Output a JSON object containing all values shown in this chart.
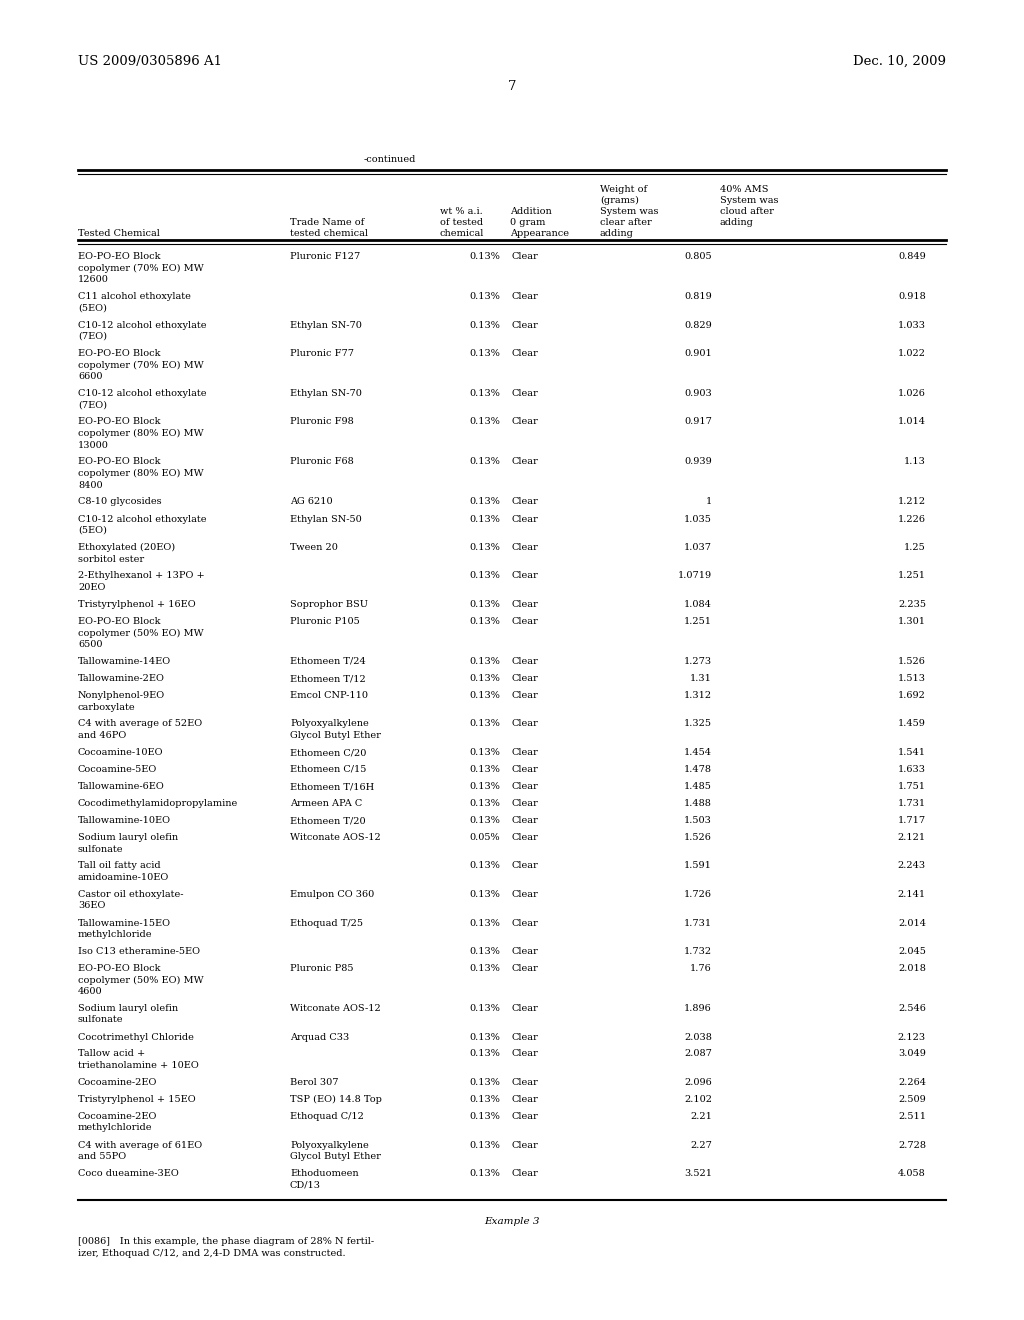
{
  "header_left": "US 2009/0305896 A1",
  "header_right": "Dec. 10, 2009",
  "page_number": "7",
  "continued_label": "-continued",
  "col_headers_line1": [
    "",
    "",
    "Weight of",
    "40% AMS"
  ],
  "col_headers_line2": [
    "",
    "",
    "(grams)",
    "System was"
  ],
  "col_headers_line3": [
    "",
    "wt % a.i.",
    "System was",
    "cloud after"
  ],
  "col_headers_line4": [
    "Trade Name of",
    "of tested  0 gram",
    "clear after",
    "adding"
  ],
  "col_headers_line5": [
    "tested chemical",
    "chemical  Appearance",
    "adding",
    ""
  ],
  "col_header_col0": "Tested Chemical",
  "rows": [
    [
      "EO-PO-EO Block\ncopolymer (70% EO) MW\n12600",
      "Pluronic F127",
      "0.13%",
      "Clear",
      "0.805",
      "0.849"
    ],
    [
      "C11 alcohol ethoxylate\n(5EO)",
      "",
      "0.13%",
      "Clear",
      "0.819",
      "0.918"
    ],
    [
      "C10-12 alcohol ethoxylate\n(7EO)",
      "Ethylan SN-70",
      "0.13%",
      "Clear",
      "0.829",
      "1.033"
    ],
    [
      "EO-PO-EO Block\ncopolymer (70% EO) MW\n6600",
      "Pluronic F77",
      "0.13%",
      "Clear",
      "0.901",
      "1.022"
    ],
    [
      "C10-12 alcohol ethoxylate\n(7EO)",
      "Ethylan SN-70",
      "0.13%",
      "Clear",
      "0.903",
      "1.026"
    ],
    [
      "EO-PO-EO Block\ncopolymer (80% EO) MW\n13000",
      "Pluronic F98",
      "0.13%",
      "Clear",
      "0.917",
      "1.014"
    ],
    [
      "EO-PO-EO Block\ncopolymer (80% EO) MW\n8400",
      "Pluronic F68",
      "0.13%",
      "Clear",
      "0.939",
      "1.13"
    ],
    [
      "C8-10 glycosides",
      "AG 6210",
      "0.13%",
      "Clear",
      "1",
      "1.212"
    ],
    [
      "C10-12 alcohol ethoxylate\n(5EO)",
      "Ethylan SN-50",
      "0.13%",
      "Clear",
      "1.035",
      "1.226"
    ],
    [
      "Ethoxylated (20EO)\nsorbitol ester",
      "Tween 20",
      "0.13%",
      "Clear",
      "1.037",
      "1.25"
    ],
    [
      "2-Ethylhexanol + 13PO +\n20EO",
      "",
      "0.13%",
      "Clear",
      "1.0719",
      "1.251"
    ],
    [
      "Tristyrylphenol + 16EO",
      "Soprophor BSU",
      "0.13%",
      "Clear",
      "1.084",
      "2.235"
    ],
    [
      "EO-PO-EO Block\ncopolymer (50% EO) MW\n6500",
      "Pluronic P105",
      "0.13%",
      "Clear",
      "1.251",
      "1.301"
    ],
    [
      "Tallowamine-14EO",
      "Ethomeen T/24",
      "0.13%",
      "Clear",
      "1.273",
      "1.526"
    ],
    [
      "Tallowamine-2EO",
      "Ethomeen T/12",
      "0.13%",
      "Clear",
      "1.31",
      "1.513"
    ],
    [
      "Nonylphenol-9EO\ncarboxylate",
      "Emcol CNP-110",
      "0.13%",
      "Clear",
      "1.312",
      "1.692"
    ],
    [
      "C4 with average of 52EO\nand 46PO",
      "Polyoxyalkylene\nGlycol Butyl Ether",
      "0.13%",
      "Clear",
      "1.325",
      "1.459"
    ],
    [
      "Cocoamine-10EO",
      "Ethomeen C/20",
      "0.13%",
      "Clear",
      "1.454",
      "1.541"
    ],
    [
      "Cocoamine-5EO",
      "Ethomeen C/15",
      "0.13%",
      "Clear",
      "1.478",
      "1.633"
    ],
    [
      "Tallowamine-6EO",
      "Ethomeen T/16H",
      "0.13%",
      "Clear",
      "1.485",
      "1.751"
    ],
    [
      "Cocodimethylamidopropylamine",
      "Armeen APA C",
      "0.13%",
      "Clear",
      "1.488",
      "1.731"
    ],
    [
      "Tallowamine-10EO",
      "Ethomeen T/20",
      "0.13%",
      "Clear",
      "1.503",
      "1.717"
    ],
    [
      "Sodium lauryl olefin\nsulfonate",
      "Witconate AOS-12",
      "0.05%",
      "Clear",
      "1.526",
      "2.121"
    ],
    [
      "Tall oil fatty acid\namidoamine-10EO",
      "",
      "0.13%",
      "Clear",
      "1.591",
      "2.243"
    ],
    [
      "Castor oil ethoxylate-\n36EO",
      "Emulpon CO 360",
      "0.13%",
      "Clear",
      "1.726",
      "2.141"
    ],
    [
      "Tallowamine-15EO\nmethylchloride",
      "Ethoquad T/25",
      "0.13%",
      "Clear",
      "1.731",
      "2.014"
    ],
    [
      "Iso C13 etheramine-5EO",
      "",
      "0.13%",
      "Clear",
      "1.732",
      "2.045"
    ],
    [
      "EO-PO-EO Block\ncopolymer (50% EO) MW\n4600",
      "Pluronic P85",
      "0.13%",
      "Clear",
      "1.76",
      "2.018"
    ],
    [
      "Sodium lauryl olefin\nsulfonate",
      "Witconate AOS-12",
      "0.13%",
      "Clear",
      "1.896",
      "2.546"
    ],
    [
      "Cocotrimethyl Chloride",
      "Arquad C33",
      "0.13%",
      "Clear",
      "2.038",
      "2.123"
    ],
    [
      "Tallow acid +\ntriethanolamine + 10EO",
      "",
      "0.13%",
      "Clear",
      "2.087",
      "3.049"
    ],
    [
      "Cocoamine-2EO",
      "Berol 307",
      "0.13%",
      "Clear",
      "2.096",
      "2.264"
    ],
    [
      "Tristyrylphenol + 15EO",
      "TSP (EO) 14.8 Top",
      "0.13%",
      "Clear",
      "2.102",
      "2.509"
    ],
    [
      "Cocoamine-2EO\nmethylchloride",
      "Ethoquad C/12",
      "0.13%",
      "Clear",
      "2.21",
      "2.511"
    ],
    [
      "C4 with average of 61EO\nand 55PO",
      "Polyoxyalkylene\nGlycol Butyl Ether",
      "0.13%",
      "Clear",
      "2.27",
      "2.728"
    ],
    [
      "Coco dueamine-3EO",
      "Ethoduomeen\nCD/13",
      "0.13%",
      "Clear",
      "3.521",
      "4.058"
    ]
  ],
  "example_label": "Example 3",
  "example_text_1": "[0086] In this example, the phase diagram of 28% N fertil-",
  "example_text_2": "izer, Ethoquad C/12, and 2,4-D DMA was constructed.",
  "bg_color": "#ffffff",
  "text_color": "#000000",
  "font_size": 7.0,
  "header_font_size": 9.5
}
